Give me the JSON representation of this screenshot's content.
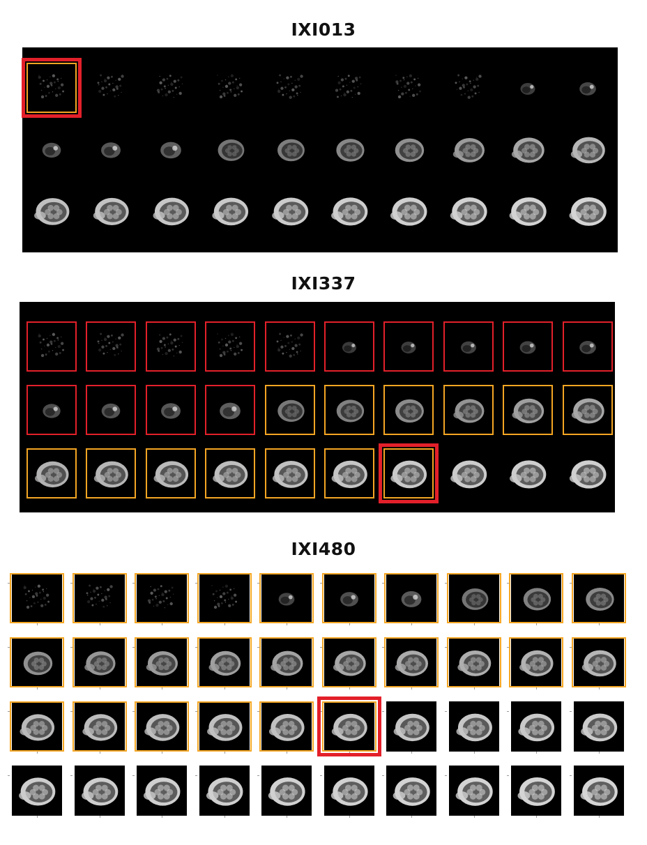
{
  "colors": {
    "excluded": "#e3202a",
    "included": "#f5a623",
    "selected": "#e3202a"
  },
  "sections": [
    {
      "title": "IXI013",
      "rows": 3,
      "cols": 10,
      "level": [
        0.05,
        0.06,
        0.08,
        0.09,
        0.1,
        0.09,
        0.12,
        0.16,
        0.22,
        0.28,
        0.35,
        0.38,
        0.42,
        0.46,
        0.5,
        0.55,
        0.6,
        0.66,
        0.72,
        0.8,
        0.85,
        0.87,
        0.89,
        0.9,
        0.91,
        0.92,
        0.93,
        0.94,
        0.95,
        0.96
      ],
      "frames": [
        "included",
        "none",
        "none",
        "none",
        "none",
        "none",
        "none",
        "none",
        "none",
        "none",
        "none",
        "none",
        "none",
        "none",
        "none",
        "none",
        "none",
        "none",
        "none",
        "none",
        "none",
        "none",
        "none",
        "none",
        "none",
        "none",
        "none",
        "none",
        "none",
        "none"
      ],
      "selected": [
        0
      ]
    },
    {
      "title": "IXI337",
      "rows": 3,
      "cols": 10,
      "level": [
        0.1,
        0.12,
        0.14,
        0.16,
        0.18,
        0.2,
        0.22,
        0.24,
        0.26,
        0.28,
        0.32,
        0.35,
        0.38,
        0.42,
        0.48,
        0.52,
        0.58,
        0.62,
        0.68,
        0.72,
        0.78,
        0.8,
        0.82,
        0.84,
        0.86,
        0.88,
        0.9,
        0.91,
        0.92,
        0.93
      ],
      "frames": [
        "excluded",
        "excluded",
        "excluded",
        "excluded",
        "excluded",
        "excluded",
        "excluded",
        "excluded",
        "excluded",
        "excluded",
        "excluded",
        "excluded",
        "excluded",
        "excluded",
        "included",
        "included",
        "included",
        "included",
        "included",
        "included",
        "included",
        "included",
        "included",
        "included",
        "included",
        "included",
        "included",
        "none",
        "none",
        "none"
      ],
      "selected": [
        26
      ]
    },
    {
      "title": "IXI480",
      "rows": 4,
      "cols": 10,
      "level": [
        0.05,
        0.08,
        0.12,
        0.18,
        0.26,
        0.33,
        0.4,
        0.46,
        0.52,
        0.56,
        0.6,
        0.63,
        0.66,
        0.68,
        0.7,
        0.72,
        0.74,
        0.76,
        0.78,
        0.8,
        0.82,
        0.83,
        0.84,
        0.85,
        0.86,
        0.87,
        0.88,
        0.89,
        0.9,
        0.91,
        0.92,
        0.92,
        0.93,
        0.93,
        0.94,
        0.94,
        0.95,
        0.95,
        0.96,
        0.96
      ],
      "frames": [
        "included",
        "included",
        "included",
        "included",
        "included",
        "included",
        "included",
        "included",
        "included",
        "included",
        "included",
        "included",
        "included",
        "included",
        "included",
        "included",
        "included",
        "included",
        "included",
        "included",
        "included",
        "included",
        "included",
        "included",
        "included",
        "included",
        "none",
        "none",
        "none",
        "none",
        "none",
        "none",
        "none",
        "none",
        "none",
        "none",
        "none",
        "none",
        "none",
        "none"
      ],
      "selected": [
        25
      ]
    }
  ]
}
